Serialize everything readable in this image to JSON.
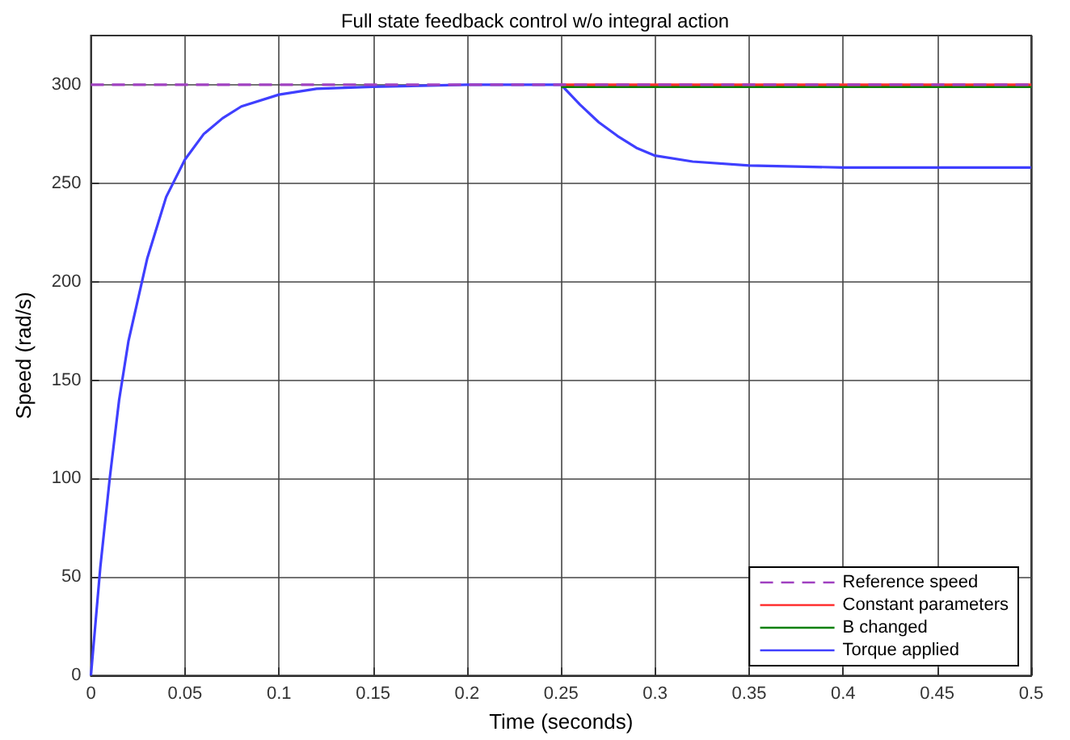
{
  "chart_data": {
    "type": "line",
    "title": "Full state feedback control w/o integral action",
    "xlabel": "Time (seconds)",
    "ylabel": "Speed (rad/s)",
    "xlim": [
      0,
      0.5
    ],
    "xticks": [
      0,
      0.05,
      0.1,
      0.15,
      0.2,
      0.25,
      0.3,
      0.35,
      0.4,
      0.45,
      0.5
    ],
    "ylim": [
      0,
      325
    ],
    "yticks": [
      0,
      50,
      100,
      150,
      200,
      250,
      300
    ],
    "grid": true,
    "legend": "bottom right",
    "marker": "none",
    "series": [
      {
        "name": "Reference speed",
        "color": "#a040c0",
        "line_style": "dashed",
        "x": [
          0,
          0.5
        ],
        "values": [
          300,
          300
        ]
      },
      {
        "name": "Constant parameters",
        "color": "#ff3030",
        "x": [
          0.25,
          0.5
        ],
        "values": [
          300,
          300
        ]
      },
      {
        "name": "B changed",
        "color": "#008000",
        "x": [
          0.25,
          0.5
        ],
        "values": [
          299,
          299
        ]
      },
      {
        "name": "Torque applied",
        "color": "#3f3fff",
        "x": [
          0,
          0.005,
          0.01,
          0.015,
          0.02,
          0.03,
          0.04,
          0.05,
          0.06,
          0.07,
          0.08,
          0.1,
          0.12,
          0.15,
          0.2,
          0.25,
          0.26,
          0.27,
          0.28,
          0.29,
          0.3,
          0.32,
          0.35,
          0.4,
          0.5
        ],
        "values": [
          0,
          55,
          100,
          140,
          170,
          212,
          243,
          262,
          275,
          283,
          289,
          295,
          298,
          299,
          300,
          300,
          290,
          281,
          274,
          268,
          264,
          261,
          259,
          258,
          258
        ]
      }
    ]
  }
}
